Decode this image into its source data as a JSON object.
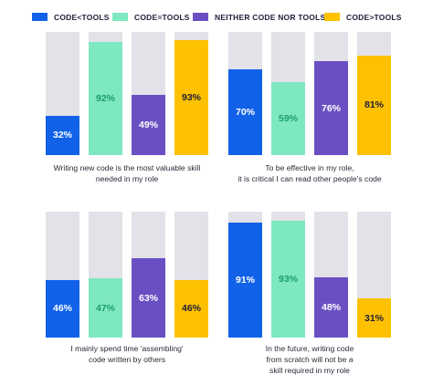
{
  "legend": [
    {
      "label": "CODE<TOOLS",
      "color": "#1162e8"
    },
    {
      "label": "CODE=TOOLS",
      "color": "#7ee8c0"
    },
    {
      "label": "NEITHER CODE NOR TOOLS",
      "color": "#6a4fc3"
    },
    {
      "label": "CODE>TOOLS",
      "color": "#fdc100"
    }
  ],
  "chart_data": [
    {
      "type": "bar",
      "caption_lines": [
        "Writing new code is the most valuable skill",
        "needed in my role"
      ],
      "series": [
        {
          "name": "CODE<TOOLS",
          "value": 32
        },
        {
          "name": "CODE=TOOLS",
          "value": 92
        },
        {
          "name": "NEITHER CODE NOR TOOLS",
          "value": 49
        },
        {
          "name": "CODE>TOOLS",
          "value": 93
        }
      ],
      "labels": [
        "32%",
        "92%",
        "49%",
        "93%"
      ],
      "ylim": [
        0,
        100
      ]
    },
    {
      "type": "bar",
      "caption_lines": [
        "To be effective in my role,",
        "it is critical I can read other people's code"
      ],
      "series": [
        {
          "name": "CODE<TOOLS",
          "value": 70
        },
        {
          "name": "CODE=TOOLS",
          "value": 59
        },
        {
          "name": "NEITHER CODE NOR TOOLS",
          "value": 76
        },
        {
          "name": "CODE>TOOLS",
          "value": 81
        }
      ],
      "labels": [
        "70%",
        "59%",
        "76%",
        "81%"
      ],
      "ylim": [
        0,
        100
      ]
    },
    {
      "type": "bar",
      "caption_lines": [
        "I mainly spend time 'assembling'",
        "code written by others"
      ],
      "series": [
        {
          "name": "CODE<TOOLS",
          "value": 46
        },
        {
          "name": "CODE=TOOLS",
          "value": 47
        },
        {
          "name": "NEITHER CODE NOR TOOLS",
          "value": 63
        },
        {
          "name": "CODE>TOOLS",
          "value": 46
        }
      ],
      "labels": [
        "46%",
        "47%",
        "63%",
        "46%"
      ],
      "ylim": [
        0,
        100
      ]
    },
    {
      "type": "bar",
      "caption_lines": [
        "In the future, writing code",
        "from scratch will not be a",
        "skill required in my role"
      ],
      "series": [
        {
          "name": "CODE<TOOLS",
          "value": 91
        },
        {
          "name": "CODE=TOOLS",
          "value": 93
        },
        {
          "name": "NEITHER CODE NOR TOOLS",
          "value": 48
        },
        {
          "name": "CODE>TOOLS",
          "value": 31
        }
      ],
      "labels": [
        "91%",
        "93%",
        "48%",
        "31%"
      ],
      "ylim": [
        0,
        100
      ]
    }
  ]
}
